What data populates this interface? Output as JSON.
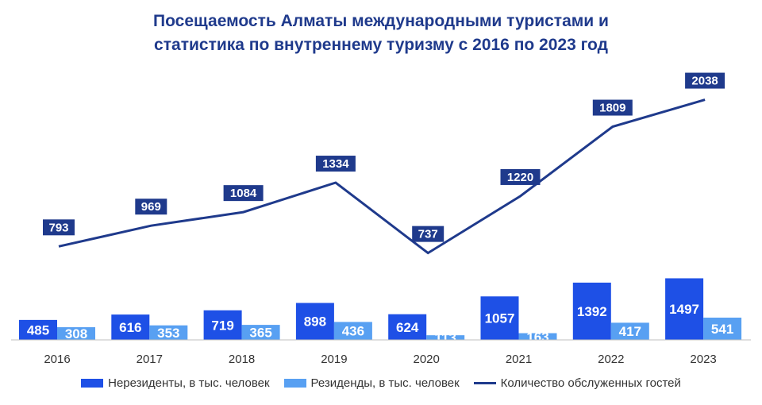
{
  "title_line1": "Посещаемость Алматы международными туристами и",
  "title_line2": "статистика по внутреннему туризму с 2016 по 2023 год",
  "colors": {
    "nonresidents": "#1e50e6",
    "residents": "#58a0f2",
    "line": "#1f3a8c",
    "label_box": "#1f3a8c"
  },
  "chart_data": {
    "type": "bar",
    "categories": [
      "2016",
      "2017",
      "2018",
      "2019",
      "2020",
      "2021",
      "2022",
      "2023"
    ],
    "series": [
      {
        "name": "Нерезиденты, в тыс. человек",
        "type": "bar",
        "values": [
          485,
          616,
          719,
          898,
          624,
          1057,
          1392,
          1497
        ]
      },
      {
        "name": "Резиденды, в тыс. человек",
        "type": "bar",
        "values": [
          308,
          353,
          365,
          436,
          113,
          163,
          417,
          541
        ]
      },
      {
        "name": "Количество обслуженных гостей",
        "type": "line",
        "values": [
          793,
          969,
          1084,
          1334,
          737,
          1220,
          1809,
          2038
        ]
      }
    ],
    "legend_position": "bottom",
    "grid": false
  }
}
